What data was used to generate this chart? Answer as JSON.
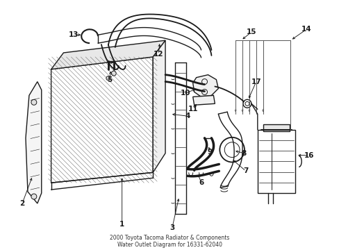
{
  "title": "2000 Toyota Tacoma Radiator & Components\nWater Outlet Diagram for 16331-62040",
  "background_color": "#ffffff",
  "line_color": "#1a1a1a",
  "fig_width": 4.89,
  "fig_height": 3.6,
  "dpi": 100
}
